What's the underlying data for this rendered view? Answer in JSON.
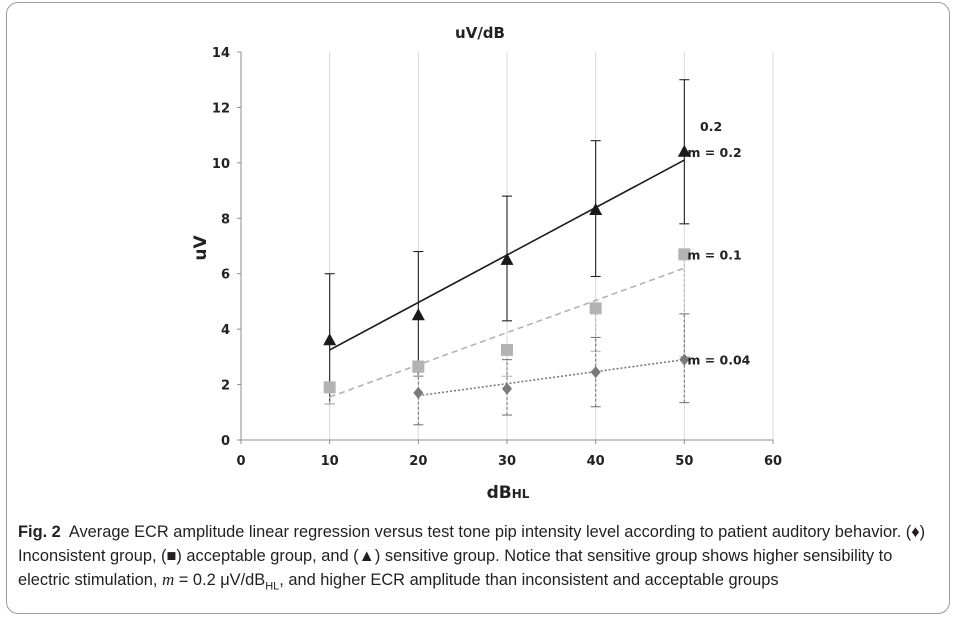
{
  "chart_data": {
    "type": "scatter",
    "title": "uV/dB",
    "xlabel_main": "dB",
    "xlabel_sub": "HL",
    "ylabel": "uV",
    "xlim": [
      0,
      60
    ],
    "ylim": [
      0,
      14
    ],
    "xticks": [
      0,
      10,
      20,
      30,
      40,
      50,
      60
    ],
    "yticks": [
      0,
      2,
      4,
      6,
      8,
      10,
      12,
      14
    ],
    "grid": "vertical",
    "series": [
      {
        "marker": "triangle",
        "color": "#1a1a1a",
        "line_style": "solid",
        "x": [
          10,
          20,
          30,
          40,
          50
        ],
        "y": [
          3.6,
          4.5,
          6.5,
          8.3,
          10.4
        ],
        "err_low": [
          1.3,
          2.3,
          4.3,
          5.9,
          7.8
        ],
        "err_high": [
          6.0,
          6.8,
          8.8,
          10.8,
          13.0
        ],
        "fit": [
          [
            10,
            3.25
          ],
          [
            50,
            10.1
          ]
        ],
        "annotation": "m = 0.2"
      },
      {
        "marker": "square",
        "color": "#b3b3b3",
        "line_style": "dashed",
        "x": [
          10,
          20,
          30,
          40,
          50
        ],
        "y": [
          1.9,
          2.65,
          3.25,
          4.75,
          6.7
        ],
        "err_low": [
          1.3,
          2.3,
          2.3,
          3.2,
          3.0
        ],
        "err_high": [
          1.9,
          2.65,
          3.25,
          4.75,
          6.7
        ],
        "fit": [
          [
            10,
            1.55
          ],
          [
            50,
            6.2
          ]
        ],
        "annotation": "m = 0.1"
      },
      {
        "marker": "diamond",
        "color": "#7a7a7a",
        "line_style": "dotted",
        "x": [
          20,
          30,
          40,
          50
        ],
        "y": [
          1.7,
          1.85,
          2.45,
          2.9
        ],
        "err_low": [
          0.55,
          0.9,
          1.2,
          1.35
        ],
        "err_high": [
          2.45,
          2.9,
          3.7,
          4.55
        ],
        "fit": [
          [
            20,
            1.6
          ],
          [
            50,
            2.9
          ]
        ],
        "annotation": "m = 0.04"
      }
    ],
    "extra_annotation": "0.2"
  },
  "caption": {
    "label": "Fig. 2",
    "text_1": "Average ECR amplitude linear regression versus test tone pip intensity level according to patient auditory behavior. (♦) Inconsistent group, (■) acceptable group, and (▲) sensitive group. Notice that sensitive group shows higher sensibility to electric stimulation, ",
    "m_symbol": "m",
    "text_2": " = 0.2 μV/dB",
    "subscript": "HL",
    "text_3": ", and higher ECR amplitude than inconsistent and acceptable groups"
  }
}
